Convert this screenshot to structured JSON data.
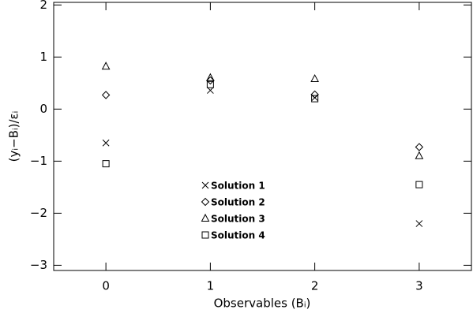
{
  "chart_data": {
    "type": "scatter",
    "x_label": "Observables (Bᵢ)",
    "y_label": "(yᵢ−Bᵢ)/εᵢ",
    "x": [
      0,
      1,
      2,
      3
    ],
    "series": [
      {
        "name": "Solution 1",
        "marker": "x",
        "color": "#000000",
        "values": [
          -0.65,
          0.36,
          0.22,
          -2.2
        ]
      },
      {
        "name": "Solution 2",
        "marker": "diamond",
        "color": "#000000",
        "values": [
          0.27,
          0.55,
          0.28,
          -0.73
        ]
      },
      {
        "name": "Solution 3",
        "marker": "triangle",
        "color": "#000000",
        "values": [
          0.82,
          0.6,
          0.58,
          -0.9
        ]
      },
      {
        "name": "Solution 4",
        "marker": "square",
        "color": "#000000",
        "values": [
          -1.05,
          0.47,
          0.2,
          -1.45
        ]
      }
    ],
    "xlim": [
      -0.5,
      3.5
    ],
    "xticks": [
      0,
      1,
      2,
      3
    ],
    "ylim": [
      -3.1,
      2.05
    ],
    "yticks": [
      {
        "value": -3,
        "label": "−3"
      },
      {
        "value": -2,
        "label": "−2"
      },
      {
        "value": -1,
        "label": "−1"
      },
      0,
      1,
      2
    ],
    "grid": false
  }
}
